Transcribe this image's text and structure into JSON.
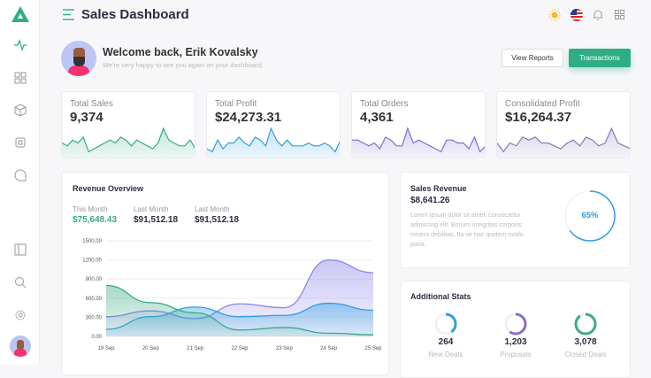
{
  "header": {
    "title": "Sales Dashboard",
    "icons": [
      "menu-icon",
      "sun-icon",
      "us-flag-icon",
      "bell-icon",
      "apps-grid-icon"
    ]
  },
  "sidebar": {
    "icons": [
      "logo",
      "activity-icon",
      "grid-icon",
      "box-icon",
      "chip-icon",
      "chat-icon",
      "sidebar-panel-icon",
      "search-icon",
      "settings-icon",
      "avatar"
    ]
  },
  "welcome": {
    "title": "Welcome back, Erik Kovalsky",
    "subtitle": "We're very happy to see you again on your dashboard.",
    "view_reports": "View Reports",
    "transactions": "Transactions"
  },
  "stats": [
    {
      "label": "Total Sales",
      "value": "9,374",
      "color": "#3aaa85",
      "spark": [
        5,
        4,
        6,
        5,
        7,
        2,
        3,
        4,
        5,
        6,
        5,
        7,
        6,
        4,
        6,
        5,
        4,
        3,
        5,
        10,
        6,
        5,
        4,
        4,
        6,
        3
      ]
    },
    {
      "label": "Total Profit",
      "value": "$24,273.31",
      "color": "#2f9fe0",
      "spark": [
        3,
        2,
        6,
        3,
        5,
        5,
        7,
        5,
        4,
        7,
        6,
        4,
        10,
        6,
        4,
        6,
        4,
        4,
        4,
        5,
        4,
        4,
        5,
        4,
        2,
        6
      ]
    },
    {
      "label": "Total Orders",
      "value": "4,361",
      "color": "#7b6fd0",
      "spark": [
        6,
        6,
        5,
        4,
        5,
        3,
        7,
        6,
        4,
        4,
        10,
        5,
        6,
        5,
        4,
        3,
        2,
        6,
        6,
        5,
        5,
        3,
        7,
        2,
        4
      ]
    },
    {
      "label": "Consolidated Profit",
      "value": "$16,264.37",
      "color": "#8a78b8",
      "spark": [
        5,
        2,
        5,
        4,
        7,
        6,
        7,
        5,
        5,
        4,
        3,
        5,
        6,
        4,
        7,
        6,
        4,
        5,
        10,
        5,
        4,
        3
      ]
    }
  ],
  "revenue": {
    "title": "Revenue Overview",
    "metrics": [
      {
        "label": "This Month",
        "value": "$75,648.43",
        "color": "#3aaa85"
      },
      {
        "label": "Last Month",
        "value": "$91,512.18",
        "color": "#2b2d42"
      },
      {
        "label": "Last Month",
        "value": "$91,512.18",
        "color": "#2b2d42"
      }
    ]
  },
  "chart_data": {
    "type": "area",
    "categories": [
      "19 Sep",
      "20 Sep",
      "21 Sep",
      "22 Sep",
      "23 Sep",
      "24 Sep",
      "25 Sep"
    ],
    "yticks": [
      "0.00",
      "300.00",
      "600.00",
      "900.00",
      "1200.00",
      "1500.00"
    ],
    "ylim": [
      0,
      1500
    ],
    "grid": true,
    "series": [
      {
        "color": "#8b84e8",
        "values": [
          310,
          400,
          280,
          510,
          450,
          1200,
          1000
        ]
      },
      {
        "color": "#2f9fe0",
        "values": [
          110,
          310,
          460,
          310,
          330,
          520,
          410
        ]
      },
      {
        "color": "#3aaa85",
        "values": [
          800,
          530,
          370,
          100,
          140,
          50,
          25
        ]
      }
    ]
  },
  "sales_revenue": {
    "title": "Sales Revenue",
    "value": "$8,641.26",
    "text": "Lorem ipsum dolor sit amet, consectetur adipiscing elit. Bonum integritas corporis: misera debilitas. Ita ne hoc quidem modo paria.",
    "percent_label": "65%",
    "percent": 65,
    "color": "#2f9fe0"
  },
  "additional": {
    "title": "Additional Stats",
    "items": [
      {
        "value": "264",
        "label": "New Deals",
        "percent": 40,
        "color": "#2f9fe0"
      },
      {
        "value": "1,203",
        "label": "Proposals",
        "percent": 60,
        "color": "#8a6fc0"
      },
      {
        "value": "3,078",
        "label": "Closed Deals",
        "percent": 90,
        "color": "#3aaa85"
      }
    ]
  }
}
